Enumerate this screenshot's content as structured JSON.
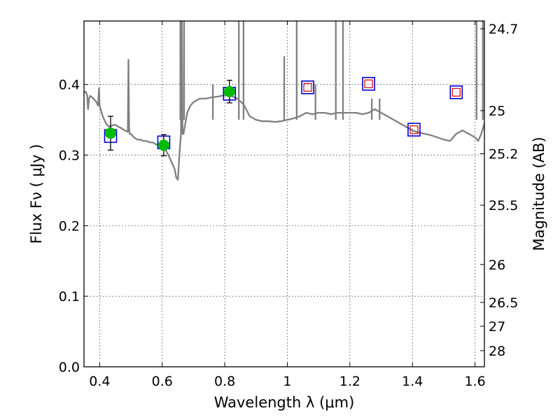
{
  "chart_data": {
    "type": "line",
    "xlabel": "Wavelength  λ (μm)",
    "ylabel": "Flux  Fν  ( μJy )",
    "ylabel_right": "Magnitude (AB)",
    "xlim": [
      0.35,
      1.63
    ],
    "ylim": [
      0.0,
      0.49
    ],
    "grid": true,
    "x_ticks": [
      0.4,
      0.6,
      0.8,
      1.0,
      1.2,
      1.4,
      1.6
    ],
    "x_tick_labels": [
      "0.4",
      "0.6",
      "0.8",
      "1",
      "1.2",
      "1.4",
      "1.6"
    ],
    "y_ticks": [
      0.0,
      0.1,
      0.2,
      0.3,
      0.4
    ],
    "y_tick_labels": [
      "0.0",
      "0.1",
      "0.2",
      "0.3",
      "0.4"
    ],
    "right_ticks": [
      {
        "label": "24.7",
        "flux": 0.479
      },
      {
        "label": "25",
        "flux": 0.363
      },
      {
        "label": "25.2",
        "flux": 0.302
      },
      {
        "label": "25.5",
        "flux": 0.229
      },
      {
        "label": "26",
        "flux": 0.145
      },
      {
        "label": "26.5",
        "flux": 0.0912
      },
      {
        "label": "27",
        "flux": 0.0575
      },
      {
        "label": "28",
        "flux": 0.0229
      }
    ],
    "colors": {
      "spectrum": "#808080",
      "observed": "#00bb00",
      "model_box": "#0000dd",
      "upper": "#dd0000"
    },
    "series": [
      {
        "style": "spectrum-line",
        "x": [
          0.35,
          0.355,
          0.36,
          0.363,
          0.366,
          0.37,
          0.38,
          0.39,
          0.395,
          0.398,
          0.4,
          0.41,
          0.42,
          0.43,
          0.44,
          0.45,
          0.46,
          0.47,
          0.48,
          0.49,
          0.492,
          0.494,
          0.496,
          0.5,
          0.51,
          0.52,
          0.53,
          0.54,
          0.55,
          0.56,
          0.57,
          0.58,
          0.59,
          0.6,
          0.61,
          0.62,
          0.63,
          0.64,
          0.645,
          0.65,
          0.655,
          0.66,
          0.663,
          0.665,
          0.668,
          0.672,
          0.68,
          0.69,
          0.7,
          0.72,
          0.74,
          0.76,
          0.78,
          0.8,
          0.82,
          0.84,
          0.86,
          0.88,
          0.9,
          0.92,
          0.94,
          0.96,
          0.98,
          1.0,
          1.02,
          1.04,
          1.06,
          1.08,
          1.1,
          1.12,
          1.14,
          1.16,
          1.18,
          1.2,
          1.22,
          1.24,
          1.26,
          1.28,
          1.3,
          1.32,
          1.34,
          1.36,
          1.38,
          1.4,
          1.42,
          1.44,
          1.46,
          1.48,
          1.5,
          1.52,
          1.54,
          1.56,
          1.58,
          1.6,
          1.61,
          1.62,
          1.63
        ],
        "y": [
          0.388,
          0.39,
          0.385,
          0.365,
          0.38,
          0.384,
          0.38,
          0.375,
          0.37,
          0.395,
          0.37,
          0.355,
          0.345,
          0.34,
          0.342,
          0.343,
          0.34,
          0.338,
          0.335,
          0.333,
          0.435,
          0.34,
          0.33,
          0.33,
          0.325,
          0.322,
          0.322,
          0.32,
          0.32,
          0.318,
          0.318,
          0.315,
          0.315,
          0.31,
          0.308,
          0.3,
          0.29,
          0.28,
          0.268,
          0.265,
          0.3,
          0.33,
          0.49,
          0.33,
          0.33,
          0.34,
          0.36,
          0.37,
          0.375,
          0.38,
          0.38,
          0.382,
          0.383,
          0.385,
          0.384,
          0.38,
          0.372,
          0.355,
          0.35,
          0.348,
          0.348,
          0.347,
          0.348,
          0.35,
          0.352,
          0.355,
          0.36,
          0.358,
          0.36,
          0.36,
          0.358,
          0.36,
          0.36,
          0.36,
          0.36,
          0.358,
          0.36,
          0.365,
          0.36,
          0.355,
          0.35,
          0.345,
          0.34,
          0.335,
          0.332,
          0.33,
          0.328,
          0.325,
          0.322,
          0.32,
          0.33,
          0.335,
          0.33,
          0.325,
          0.32,
          0.33,
          0.345
        ]
      },
      {
        "style": "emission-lines",
        "lines": [
          {
            "x": 0.658,
            "y": 0.49
          },
          {
            "x": 0.67,
            "y": 0.49
          },
          {
            "x": 0.762,
            "y": 0.4
          },
          {
            "x": 0.845,
            "y": 0.49
          },
          {
            "x": 0.86,
            "y": 0.49
          },
          {
            "x": 0.99,
            "y": 0.44
          },
          {
            "x": 1.03,
            "y": 0.49
          },
          {
            "x": 1.09,
            "y": 0.4
          },
          {
            "x": 1.155,
            "y": 0.49
          },
          {
            "x": 1.178,
            "y": 0.49
          },
          {
            "x": 1.27,
            "y": 0.38
          },
          {
            "x": 1.295,
            "y": 0.38
          },
          {
            "x": 1.605,
            "y": 0.49
          },
          {
            "x": 1.625,
            "y": 0.49
          }
        ]
      },
      {
        "style": "model-boxes",
        "x": [
          0.435,
          0.605,
          0.815,
          1.065,
          1.26,
          1.405,
          1.54
        ],
        "y": [
          0.327,
          0.318,
          0.387,
          0.396,
          0.401,
          0.336,
          0.389
        ]
      },
      {
        "style": "observed-points",
        "x": [
          0.435,
          0.605,
          0.815
        ],
        "y": [
          0.331,
          0.314,
          0.39
        ],
        "err": [
          0.024,
          0.015,
          0.016
        ]
      },
      {
        "style": "upper-limit-boxes",
        "x": [
          1.065,
          1.26,
          1.405,
          1.54
        ],
        "y": [
          0.396,
          0.401,
          0.336,
          0.389
        ]
      }
    ]
  }
}
